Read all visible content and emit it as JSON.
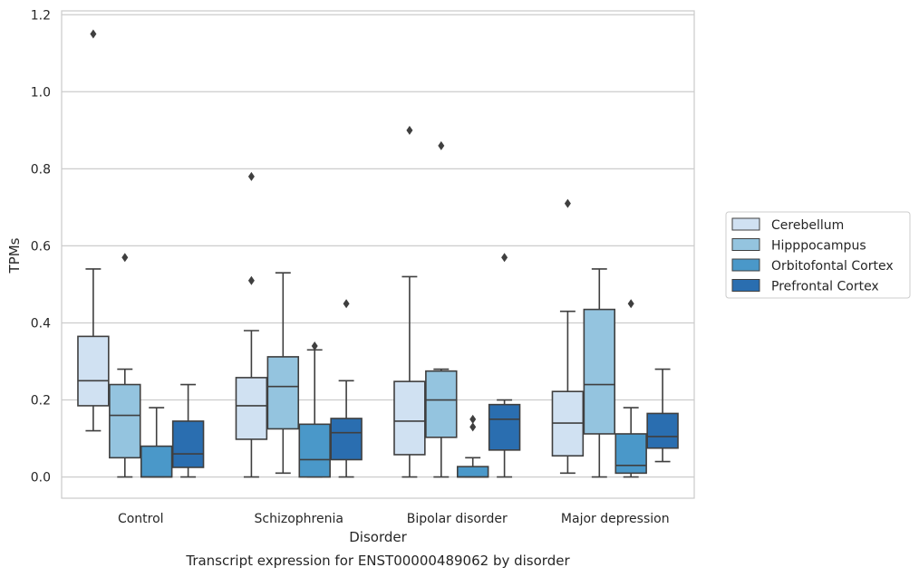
{
  "chart_data": {
    "type": "box",
    "xlabel": "Disorder",
    "ylabel": "TPMs",
    "caption": "Transcript expression for ENST00000489062 by disorder",
    "ylim": [
      -0.055,
      1.21
    ],
    "yticks": [
      0.0,
      0.2,
      0.4,
      0.6,
      0.8,
      1.0,
      1.2
    ],
    "ytick_labels": [
      "0.0",
      "0.2",
      "0.4",
      "0.6",
      "0.8",
      "1.0",
      "1.2"
    ],
    "grid": "horizontal",
    "legend_position": "right",
    "categories": [
      "Control",
      "Schizophrenia",
      "Bipolar disorder",
      "Major depression"
    ],
    "series": [
      {
        "name": "Cerebellum",
        "color": "#d0e1f2",
        "boxes": [
          {
            "whislo": 0.12,
            "q1": 0.185,
            "med": 0.25,
            "q3": 0.365,
            "whishi": 0.54,
            "fliers": [
              1.15
            ]
          },
          {
            "whislo": 0.0,
            "q1": 0.098,
            "med": 0.185,
            "q3": 0.258,
            "whishi": 0.38,
            "fliers": [
              0.51,
              0.78
            ]
          },
          {
            "whislo": 0.0,
            "q1": 0.058,
            "med": 0.145,
            "q3": 0.248,
            "whishi": 0.52,
            "fliers": [
              0.9
            ]
          },
          {
            "whislo": 0.01,
            "q1": 0.055,
            "med": 0.14,
            "q3": 0.222,
            "whishi": 0.43,
            "fliers": [
              0.71
            ]
          }
        ]
      },
      {
        "name": "Hipppocampus",
        "color": "#94c4df",
        "boxes": [
          {
            "whislo": 0.0,
            "q1": 0.05,
            "med": 0.16,
            "q3": 0.24,
            "whishi": 0.28,
            "fliers": [
              0.57
            ]
          },
          {
            "whislo": 0.01,
            "q1": 0.125,
            "med": 0.235,
            "q3": 0.312,
            "whishi": 0.53,
            "fliers": []
          },
          {
            "whislo": 0.0,
            "q1": 0.103,
            "med": 0.2,
            "q3": 0.275,
            "whishi": 0.28,
            "fliers": [
              0.86
            ]
          },
          {
            "whislo": 0.0,
            "q1": 0.112,
            "med": 0.24,
            "q3": 0.435,
            "whishi": 0.54,
            "fliers": []
          }
        ]
      },
      {
        "name": "Orbitofontal Cortex",
        "color": "#4a98c9",
        "boxes": [
          {
            "whislo": 0.0,
            "q1": 0.0,
            "med": 0.0,
            "q3": 0.08,
            "whishi": 0.18,
            "fliers": []
          },
          {
            "whislo": 0.0,
            "q1": 0.0,
            "med": 0.045,
            "q3": 0.137,
            "whishi": 0.33,
            "fliers": [
              0.34
            ]
          },
          {
            "whislo": 0.0,
            "q1": 0.0,
            "med": 0.0,
            "q3": 0.027,
            "whishi": 0.05,
            "fliers": [
              0.13,
              0.15
            ]
          },
          {
            "whislo": 0.0,
            "q1": 0.01,
            "med": 0.03,
            "q3": 0.112,
            "whishi": 0.18,
            "fliers": [
              0.45
            ]
          }
        ]
      },
      {
        "name": "Prefrontal Cortex",
        "color": "#2a6eb0",
        "boxes": [
          {
            "whislo": 0.0,
            "q1": 0.025,
            "med": 0.06,
            "q3": 0.145,
            "whishi": 0.24,
            "fliers": []
          },
          {
            "whislo": 0.0,
            "q1": 0.045,
            "med": 0.115,
            "q3": 0.152,
            "whishi": 0.25,
            "fliers": [
              0.45
            ]
          },
          {
            "whislo": 0.0,
            "q1": 0.07,
            "med": 0.15,
            "q3": 0.188,
            "whishi": 0.2,
            "fliers": [
              0.57
            ]
          },
          {
            "whislo": 0.04,
            "q1": 0.075,
            "med": 0.105,
            "q3": 0.165,
            "whishi": 0.28,
            "fliers": []
          }
        ]
      }
    ]
  }
}
